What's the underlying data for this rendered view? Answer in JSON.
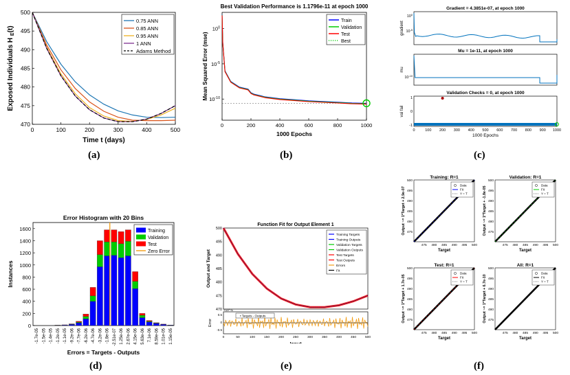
{
  "panels": {
    "a": {
      "label": "(a)"
    },
    "b": {
      "label": "(b)"
    },
    "c": {
      "label": "(c)"
    },
    "d": {
      "label": "(d)"
    },
    "e": {
      "label": "(e)"
    },
    "f": {
      "label": "(f)"
    }
  },
  "chart_data": [
    {
      "id": "a",
      "type": "line",
      "title": "",
      "xlabel": "Time t (days)",
      "ylabel": "Exposed Individuals H",
      "ylabel_sub": "E",
      "ylabel_suffix": "(t)",
      "xlim": [
        0,
        500
      ],
      "ylim": [
        470,
        500
      ],
      "xticks": [
        0,
        100,
        200,
        300,
        400,
        500
      ],
      "yticks": [
        470,
        475,
        480,
        485,
        490,
        495,
        500
      ],
      "legend": "top-right",
      "series": [
        {
          "name": "0.75 ANN",
          "color": "#1f77b4",
          "x": [
            0,
            50,
            100,
            150,
            200,
            250,
            300,
            350,
            400,
            450,
            500
          ],
          "y": [
            500,
            492.2,
            486.1,
            481.4,
            477.9,
            475.4,
            473.6,
            472.5,
            471.9,
            471.8,
            471.9
          ]
        },
        {
          "name": "0.85 ANN",
          "color": "#d95319",
          "x": [
            0,
            50,
            100,
            150,
            200,
            250,
            300,
            350,
            400,
            450,
            500
          ],
          "y": [
            500,
            491.3,
            484.6,
            479.6,
            476.0,
            473.5,
            471.9,
            471.1,
            471.0,
            471.0,
            471.1
          ]
        },
        {
          "name": "0.95 ANN",
          "color": "#edb120",
          "x": [
            0,
            50,
            100,
            150,
            200,
            250,
            300,
            350,
            400,
            450,
            500
          ],
          "y": [
            500,
            490.7,
            483.5,
            478.2,
            474.5,
            472.2,
            471.0,
            470.8,
            471.3,
            472.5,
            474.3
          ]
        },
        {
          "name": "1 ANN",
          "color": "#7e2f8e",
          "x": [
            0,
            50,
            100,
            150,
            200,
            250,
            300,
            350,
            400,
            450,
            500
          ],
          "y": [
            500,
            490.4,
            483.0,
            477.6,
            473.9,
            471.7,
            470.7,
            470.7,
            471.4,
            472.9,
            475.0
          ]
        },
        {
          "name": "Adams Method",
          "color": "#000000",
          "dashed": true,
          "x": [
            0,
            50,
            100,
            150,
            200,
            250,
            300,
            350,
            400,
            450,
            500
          ],
          "y": [
            500,
            490.4,
            483.0,
            477.6,
            473.9,
            471.7,
            470.7,
            470.7,
            471.4,
            472.9,
            475.0
          ]
        }
      ]
    },
    {
      "id": "b",
      "type": "line",
      "title": "Best Validation Performance is 1.1796e-11 at epoch 1000",
      "xlabel": "1000 Epochs",
      "ylabel": "Mean Squared Error  (mse)",
      "yscale": "log",
      "xlim": [
        0,
        1000
      ],
      "xticks": [
        0,
        200,
        400,
        600,
        800,
        1000
      ],
      "ytick_labels": [
        "10^0",
        "10^-5",
        "10^-10"
      ],
      "legend": "top-right",
      "best": {
        "epoch": 1000,
        "value": "1.1796e-11"
      },
      "series": [
        {
          "name": "Train",
          "color": "#0000ff"
        },
        {
          "name": "Validation",
          "color": "#00cc00"
        },
        {
          "name": "Test",
          "color": "#ff0000"
        },
        {
          "name": "Best",
          "color": "#00cc00",
          "dotted": true
        }
      ],
      "curve": {
        "x": [
          0,
          5,
          20,
          60,
          120,
          180,
          200,
          220,
          300,
          400,
          500,
          600,
          700,
          800,
          900,
          1000
        ],
        "log10_y": [
          2,
          -2,
          -6,
          -7.5,
          -8.3,
          -8.6,
          -9.1,
          -9.3,
          -9.7,
          -9.95,
          -10.1,
          -10.25,
          -10.35,
          -10.45,
          -10.55,
          -10.6
        ]
      }
    },
    {
      "id": "c",
      "type": "line",
      "subplots": [
        {
          "title": "Gradient = 4.3851e-07, at epoch 1000",
          "ylabel": "gradient",
          "ytick_labels": [
            "10^0",
            "10^-5"
          ]
        },
        {
          "title": "Mu = 1e-11, at epoch 1000",
          "ylabel": "mu",
          "ytick_labels": [
            "10^-10"
          ]
        },
        {
          "title": "Validation Checks = 0, at epoch 1000",
          "ylabel": "val fail",
          "ytick_labels": [
            "1",
            "0",
            "-1"
          ]
        }
      ],
      "xlabel": "1000 Epochs",
      "xlim": [
        0,
        1000
      ],
      "xticks": [
        0,
        100,
        200,
        300,
        400,
        500,
        600,
        700,
        800,
        900,
        1000
      ]
    },
    {
      "id": "d",
      "type": "bar",
      "title": "Error Histogram with 20 Bins",
      "xlabel": "Errors = Targets - Outputs",
      "ylabel": "Instances",
      "ylim": [
        0,
        1700
      ],
      "yticks": [
        0,
        200,
        400,
        600,
        800,
        1000,
        1200,
        1400,
        1600
      ],
      "categories": [
        "-1.7e-05",
        "-1.5e-05",
        "-1.4e-05",
        "-1.2e-05",
        "-1.1e-05",
        "-9.2e-06",
        "-7.7e-06",
        "-6.2e-06",
        "-4.7e-06",
        "-3.2e-06",
        "-1.8e-06",
        "-2.51e-07",
        "1.25e-06",
        "2.67e-06",
        "4.15e-06",
        "5.63e-06",
        "7.1e-06",
        "8.59e-06",
        "1.01e-05",
        "1.15e-05"
      ],
      "series": [
        {
          "name": "Training",
          "color": "#0000ff",
          "values": [
            0,
            0,
            2,
            5,
            8,
            18,
            45,
            110,
            400,
            970,
            1150,
            1160,
            1120,
            1150,
            610,
            130,
            60,
            35,
            18,
            6
          ]
        },
        {
          "name": "Validation",
          "color": "#00cc00",
          "values": [
            0,
            0,
            0,
            1,
            2,
            5,
            12,
            40,
            90,
            200,
            230,
            220,
            230,
            240,
            120,
            40,
            12,
            6,
            3,
            1
          ]
        },
        {
          "name": "Test",
          "color": "#ff0000",
          "values": [
            0,
            0,
            0,
            1,
            2,
            5,
            13,
            40,
            140,
            230,
            200,
            200,
            200,
            190,
            160,
            30,
            12,
            6,
            3,
            1
          ]
        },
        {
          "name": "Zero Error",
          "color": "#f39c12"
        }
      ],
      "zero_error_bin": 11
    },
    {
      "id": "e",
      "type": "line",
      "title": "Function Fit for Output Element 1",
      "xlabel": "Input",
      "ylabel": "Output and Target",
      "xlim": [
        0,
        500
      ],
      "ylim": [
        470,
        500
      ],
      "yticks": [
        470,
        475,
        480,
        485,
        490,
        495,
        500
      ],
      "xticks": [
        0,
        50,
        100,
        150,
        200,
        250,
        300,
        350,
        400,
        450,
        500
      ],
      "legend": [
        "Training Targets",
        "Training Outputs",
        "Validation Targets",
        "Validation Outputs",
        "Test Targets",
        "Test Outputs",
        "Errors",
        "Fit"
      ],
      "legend_colors": [
        "#0000ff",
        "#0000ff",
        "#00cc00",
        "#00cc00",
        "#ff0000",
        "#ff0000",
        "#f39c12",
        "#000000"
      ],
      "error_ylabel": "Error",
      "error_legend": "Targets - Outputs",
      "error_scale": "×10^-5",
      "error_yticks": [
        "0.5",
        "0",
        "-0.5"
      ],
      "x": [
        0,
        50,
        100,
        150,
        200,
        250,
        300,
        350,
        400,
        450,
        500
      ],
      "y": [
        500,
        490.4,
        483.0,
        477.6,
        473.9,
        471.7,
        470.7,
        470.7,
        471.4,
        472.9,
        475.0
      ]
    },
    {
      "id": "f",
      "type": "scatter",
      "subplots": [
        {
          "title": "Training: R=1",
          "ylabel": "Output ~= 1*Target + 2.9e-07",
          "fit_color": "#0000ff"
        },
        {
          "title": "Validation: R=1",
          "ylabel": "Output ~= 1*Target + -1.8e-05",
          "fit_color": "#00cc00"
        },
        {
          "title": "Test: R=1",
          "ylabel": "Output ~= 1*Target + 1.7e-05",
          "fit_color": "#ff0000"
        },
        {
          "title": "All: R=1",
          "ylabel": "Output ~= 1*Target + 6.7e-10",
          "fit_color": "#000000"
        }
      ],
      "xlabel": "Target",
      "xlim": [
        470,
        500
      ],
      "ylim": [
        470,
        500
      ],
      "xticks": [
        475,
        480,
        485,
        490,
        495,
        500
      ],
      "yticks": [
        475,
        480,
        485,
        490,
        495,
        500
      ],
      "legend": [
        "Data",
        "Fit",
        "Y = T"
      ]
    }
  ]
}
